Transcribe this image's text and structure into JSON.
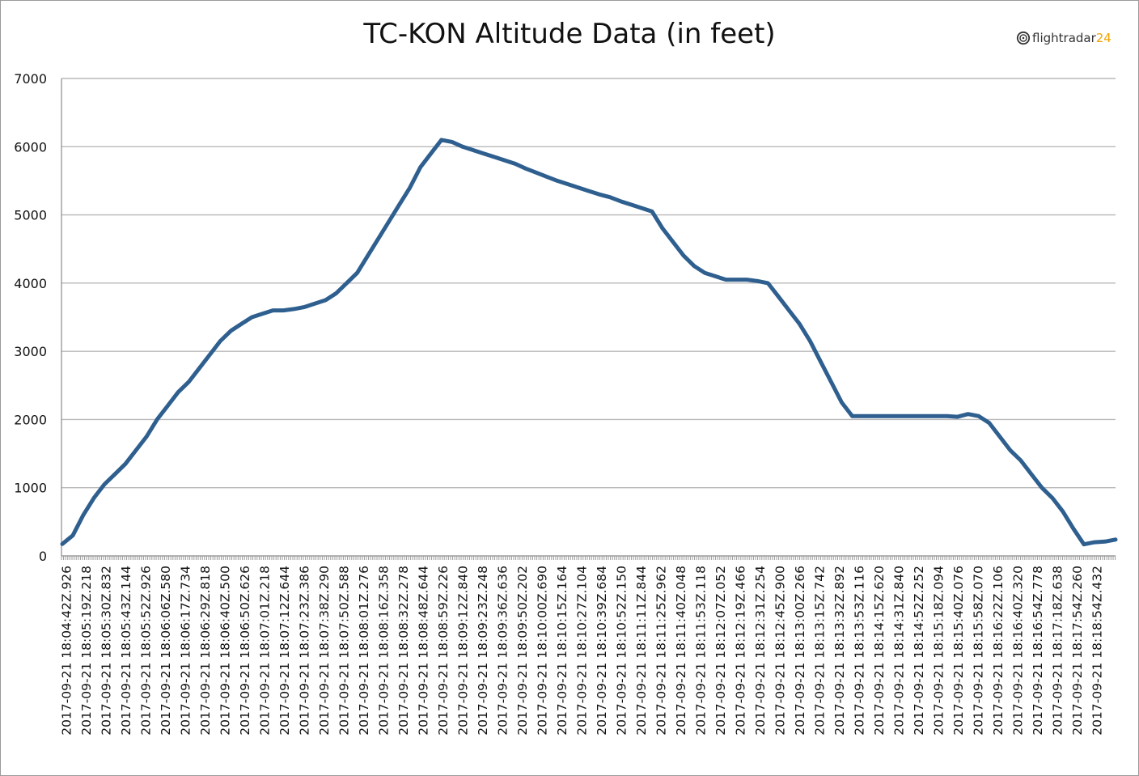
{
  "logo": {
    "text_a": "flightradar",
    "text_b": "24",
    "icon": "flightradar-radar-icon",
    "accent_color": "#f0a400"
  },
  "chart_data": {
    "type": "line",
    "title": "TC-KON Altitude Data (in feet)",
    "xlabel": "",
    "ylabel": "",
    "ylim": [
      0,
      7000
    ],
    "y_ticks": [
      "0",
      "1000",
      "2000",
      "3000",
      "4000",
      "5000",
      "6000",
      "7000"
    ],
    "grid": true,
    "legend": "none",
    "line_color": "#2e5f8f",
    "x_tick_labels": [
      "2017-09-21 18:04:42Z.926",
      "2017-09-21 18:05:19Z.218",
      "2017-09-21 18:05:30Z.832",
      "2017-09-21 18:05:43Z.144",
      "2017-09-21 18:05:52Z.926",
      "2017-09-21 18:06:06Z.580",
      "2017-09-21 18:06:17Z.734",
      "2017-09-21 18:06:29Z.818",
      "2017-09-21 18:06:40Z.500",
      "2017-09-21 18:06:50Z.626",
      "2017-09-21 18:07:01Z.218",
      "2017-09-21 18:07:12Z.644",
      "2017-09-21 18:07:23Z.386",
      "2017-09-21 18:07:38Z.290",
      "2017-09-21 18:07:50Z.588",
      "2017-09-21 18:08:01Z.276",
      "2017-09-21 18:08:16Z.358",
      "2017-09-21 18:08:32Z.278",
      "2017-09-21 18:08:48Z.644",
      "2017-09-21 18:08:59Z.226",
      "2017-09-21 18:09:12Z.840",
      "2017-09-21 18:09:23Z.248",
      "2017-09-21 18:09:36Z.636",
      "2017-09-21 18:09:50Z.202",
      "2017-09-21 18:10:00Z.690",
      "2017-09-21 18:10:15Z.164",
      "2017-09-21 18:10:27Z.104",
      "2017-09-21 18:10:39Z.684",
      "2017-09-21 18:10:52Z.150",
      "2017-09-21 18:11:11Z.844",
      "2017-09-21 18:11:25Z.962",
      "2017-09-21 18:11:40Z.048",
      "2017-09-21 18:11:53Z.118",
      "2017-09-21 18:12:07Z.052",
      "2017-09-21 18:12:19Z.466",
      "2017-09-21 18:12:31Z.254",
      "2017-09-21 18:12:45Z.900",
      "2017-09-21 18:13:00Z.266",
      "2017-09-21 18:13:15Z.742",
      "2017-09-21 18:13:32Z.892",
      "2017-09-21 18:13:53Z.116",
      "2017-09-21 18:14:15Z.620",
      "2017-09-21 18:14:31Z.840",
      "2017-09-21 18:14:52Z.252",
      "2017-09-21 18:15:18Z.094",
      "2017-09-21 18:15:40Z.076",
      "2017-09-21 18:15:58Z.070",
      "2017-09-21 18:16:22Z.106",
      "2017-09-21 18:16:40Z.320",
      "2017-09-21 18:16:54Z.778",
      "2017-09-21 18:17:18Z.638",
      "2017-09-21 18:17:54Z.260",
      "2017-09-21 18:18:54Z.432"
    ],
    "series": [
      {
        "values": [
          175,
          300,
          600,
          850,
          1050,
          1200,
          1350,
          1550,
          1750,
          2000,
          2200,
          2400,
          2550,
          2750,
          2950,
          3150,
          3300,
          3400,
          3500,
          3550,
          3600,
          3600,
          3620,
          3650,
          3700,
          3750,
          3850,
          4000,
          4150,
          4400,
          4650,
          4900,
          5150,
          5400,
          5700,
          5900,
          6100,
          6070,
          6000,
          5950,
          5900,
          5850,
          5800,
          5750,
          5680,
          5620,
          5560,
          5500,
          5450,
          5400,
          5350,
          5300,
          5260,
          5200,
          5150,
          5100,
          5050,
          4800,
          4600,
          4400,
          4250,
          4150,
          4100,
          4050,
          4050,
          4050,
          4030,
          4000,
          3800,
          3600,
          3400,
          3150,
          2850,
          2550,
          2250,
          2050,
          2050,
          2050,
          2050,
          2050,
          2050,
          2050,
          2050,
          2050,
          2050,
          2040,
          2080,
          2050,
          1950,
          1750,
          1550,
          1400,
          1200,
          1000,
          850,
          650,
          400,
          170,
          200,
          210,
          240
        ]
      }
    ]
  }
}
